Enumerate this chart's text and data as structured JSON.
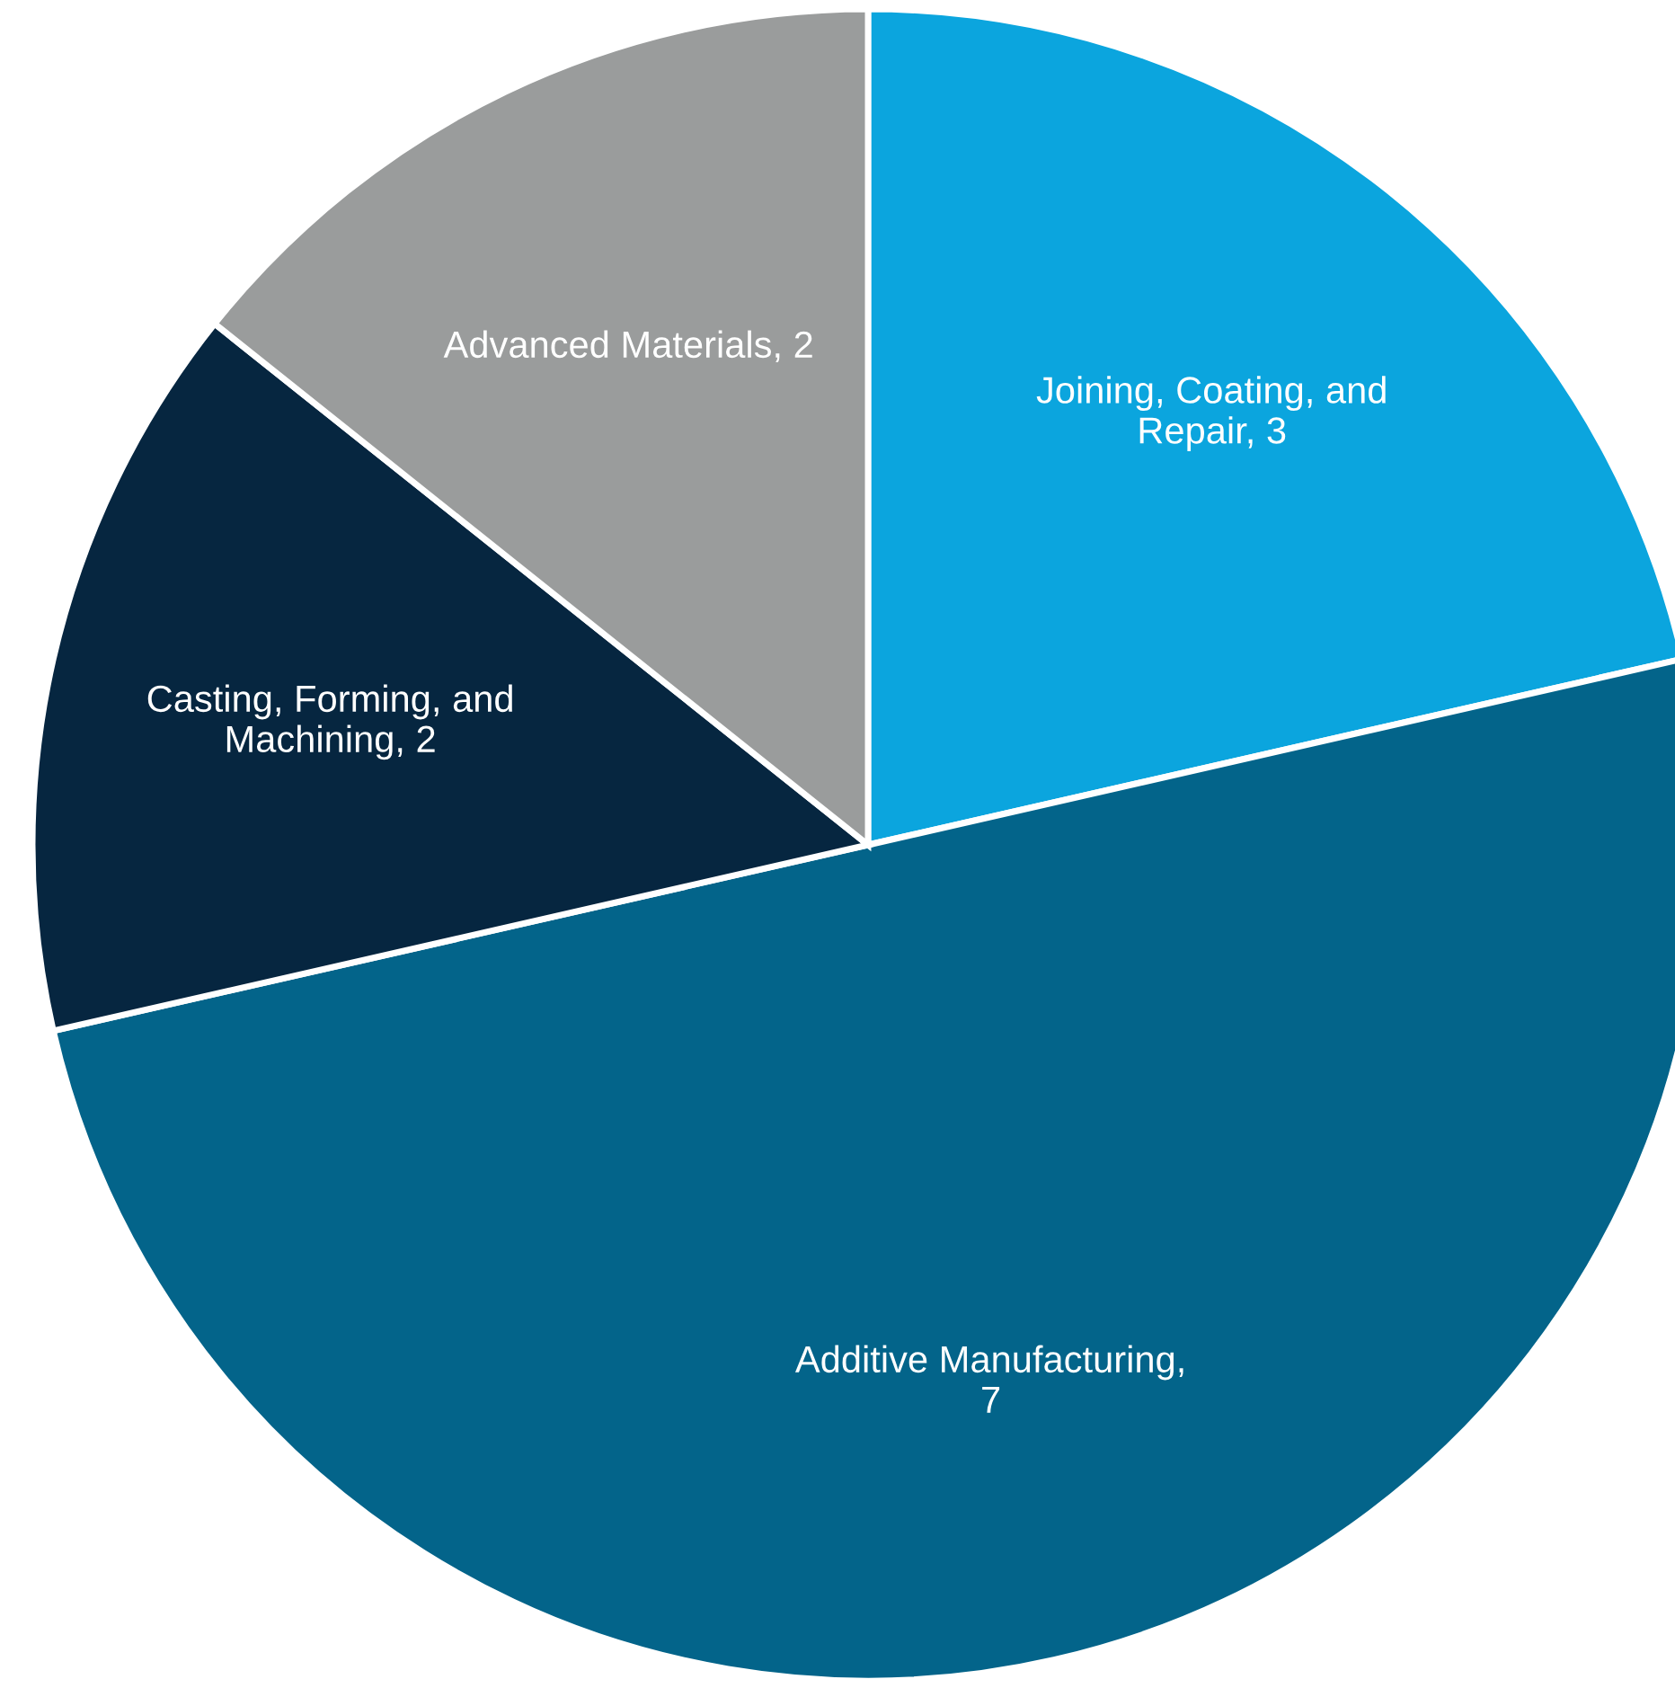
{
  "chart_data": {
    "type": "pie",
    "categories": [
      "Joining, Coating, and Repair, 3",
      "Additive Manufacturing, 7",
      "Casting, Forming, and Machining, 2",
      "Advanced Materials, 2"
    ],
    "values": [
      3,
      7,
      2,
      2
    ],
    "colors": [
      "#0ba5de",
      "#03648a",
      "#062640",
      "#9a9c9c"
    ]
  }
}
